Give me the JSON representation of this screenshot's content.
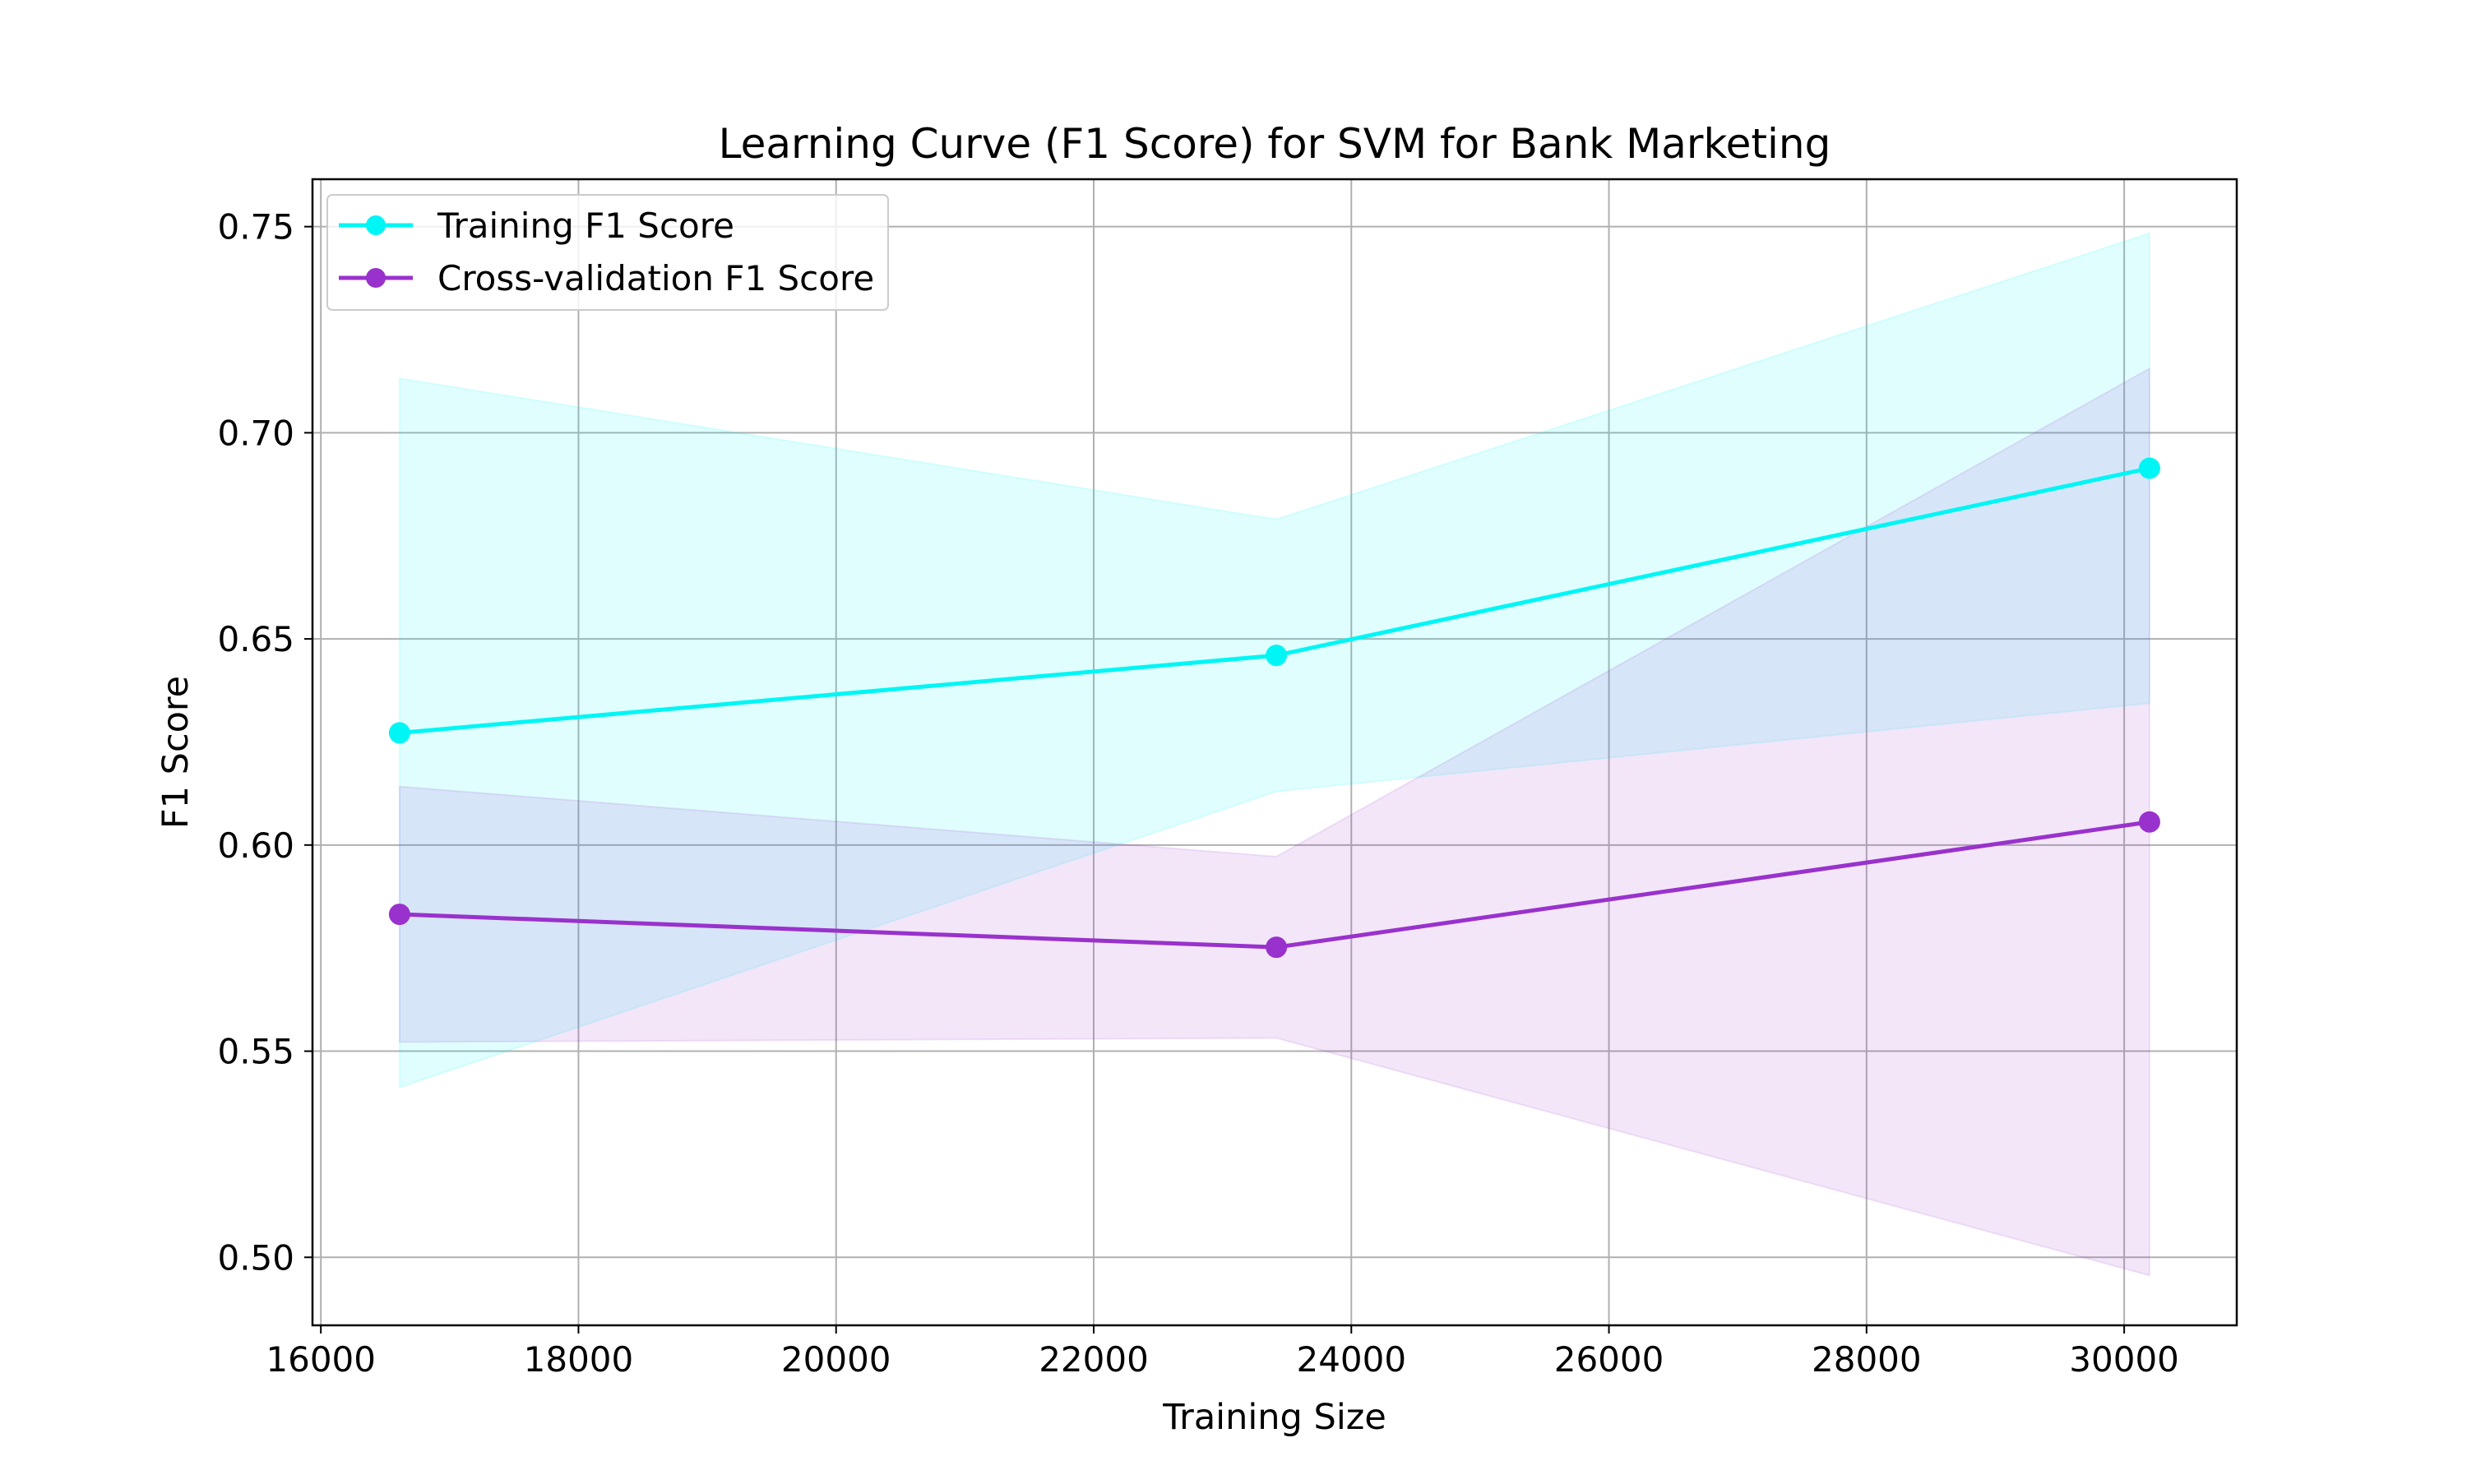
{
  "chart_data": {
    "type": "line",
    "title": "Learning Curve (F1 Score) for SVM for Bank Marketing",
    "xlabel": "Training Size",
    "ylabel": "F1 Score",
    "x": [
      16611,
      23418,
      30197
    ],
    "xlim": [
      15935,
      30874
    ],
    "ylim": [
      0.4835,
      0.7615
    ],
    "xticks": [
      16000,
      18000,
      20000,
      22000,
      24000,
      26000,
      28000,
      30000
    ],
    "yticks": [
      0.5,
      0.55,
      0.6,
      0.65,
      0.7,
      0.75
    ],
    "xtick_labels": [
      "16000",
      "18000",
      "20000",
      "22000",
      "24000",
      "26000",
      "28000",
      "30000"
    ],
    "ytick_labels": [
      "0.50",
      "0.55",
      "0.60",
      "0.65",
      "0.70",
      "0.75"
    ],
    "grid": true,
    "legend_position": "upper left",
    "series": [
      {
        "name": "Training F1 Score",
        "color": "#00f5f5",
        "values": [
          0.6272,
          0.646,
          0.6914
        ],
        "band_lower": [
          0.5412,
          0.613,
          0.6344
        ],
        "band_upper": [
          0.7132,
          0.679,
          0.7484
        ]
      },
      {
        "name": "Cross-validation F1 Score",
        "color": "#9932cc",
        "values": [
          0.5832,
          0.5752,
          0.6056
        ],
        "band_lower": [
          0.5522,
          0.5532,
          0.4956
        ],
        "band_upper": [
          0.6142,
          0.5972,
          0.7156
        ]
      }
    ]
  }
}
